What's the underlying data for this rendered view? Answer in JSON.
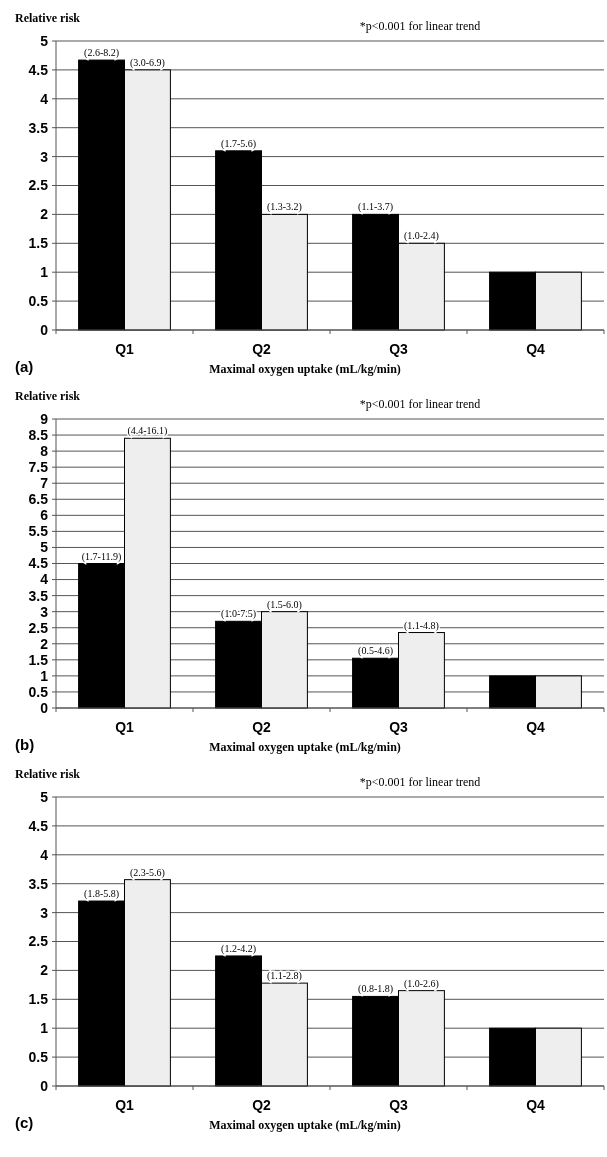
{
  "chart_data": [
    {
      "type": "bar",
      "ylabel": "Relative risk",
      "xlabel": "Maximal oxygen uptake (mL/kg/min)",
      "annotations": [
        "*p<0.001 for linear trend",
        "(a)"
      ],
      "categories": [
        "Q1",
        "Q2",
        "Q3",
        "Q4"
      ],
      "series": [
        {
          "color": "#000000",
          "values": [
            4.67,
            3.1,
            2.0,
            1.0
          ],
          "value_labels": [
            "(2.6-8.2)",
            "(1.7-5.6)",
            "(1.1-3.7)",
            null
          ]
        },
        {
          "color": "#eeeeee",
          "values": [
            4.5,
            2.0,
            1.5,
            1.0
          ],
          "value_labels": [
            "(3.0-6.9)",
            "(1.3-3.2)",
            "(1.0-2.4)",
            null
          ]
        }
      ],
      "ylim": [
        0,
        5
      ],
      "yticks": [
        0,
        0.5,
        1,
        1.5,
        2,
        2.5,
        3,
        3.5,
        4,
        4.5,
        5
      ],
      "grid": "y"
    },
    {
      "type": "bar",
      "ylabel": "Relative risk",
      "xlabel": "Maximal oxygen uptake (mL/kg/min)",
      "annotations": [
        "*p<0.001 for linear trend",
        "(b)"
      ],
      "categories": [
        "Q1",
        "Q2",
        "Q3",
        "Q4"
      ],
      "series": [
        {
          "color": "#000000",
          "values": [
            4.5,
            2.7,
            1.55,
            1.0
          ],
          "value_labels": [
            "(1.7-11.9)",
            "(1.0-7.5)",
            "(0.5-4.6)",
            null
          ]
        },
        {
          "color": "#eeeeee",
          "values": [
            8.4,
            3.0,
            2.35,
            1.0
          ],
          "value_labels": [
            "(4.4-16.1)",
            "(1.5-6.0)",
            "(1.1-4.8)",
            null
          ]
        }
      ],
      "ylim": [
        0,
        9
      ],
      "yticks": [
        0,
        0.5,
        1,
        1.5,
        2,
        2.5,
        3,
        3.5,
        4,
        4.5,
        5,
        5.5,
        6,
        6.5,
        7,
        7.5,
        8,
        8.5,
        9
      ],
      "grid": "y"
    },
    {
      "type": "bar",
      "ylabel": "Relative risk",
      "xlabel": "Maximal oxygen uptake (mL/kg/min)",
      "annotations": [
        "*p<0.001 for linear trend",
        "(c)"
      ],
      "categories": [
        "Q1",
        "Q2",
        "Q3",
        "Q4"
      ],
      "series": [
        {
          "color": "#000000",
          "values": [
            3.2,
            2.25,
            1.55,
            1.0
          ],
          "value_labels": [
            "(1.8-5.8)",
            "(1.2-4.2)",
            "(0.8-1.8)",
            null
          ]
        },
        {
          "color": "#eeeeee",
          "values": [
            3.57,
            1.78,
            1.65,
            1.0
          ],
          "value_labels": [
            "(2.3-5.6)",
            "(1.1-2.8)",
            "(1.0-2.6)",
            null
          ]
        }
      ],
      "ylim": [
        0,
        5
      ],
      "yticks": [
        0,
        0.5,
        1,
        1.5,
        2,
        2.5,
        3,
        3.5,
        4,
        4.5,
        5
      ],
      "grid": "y"
    }
  ]
}
